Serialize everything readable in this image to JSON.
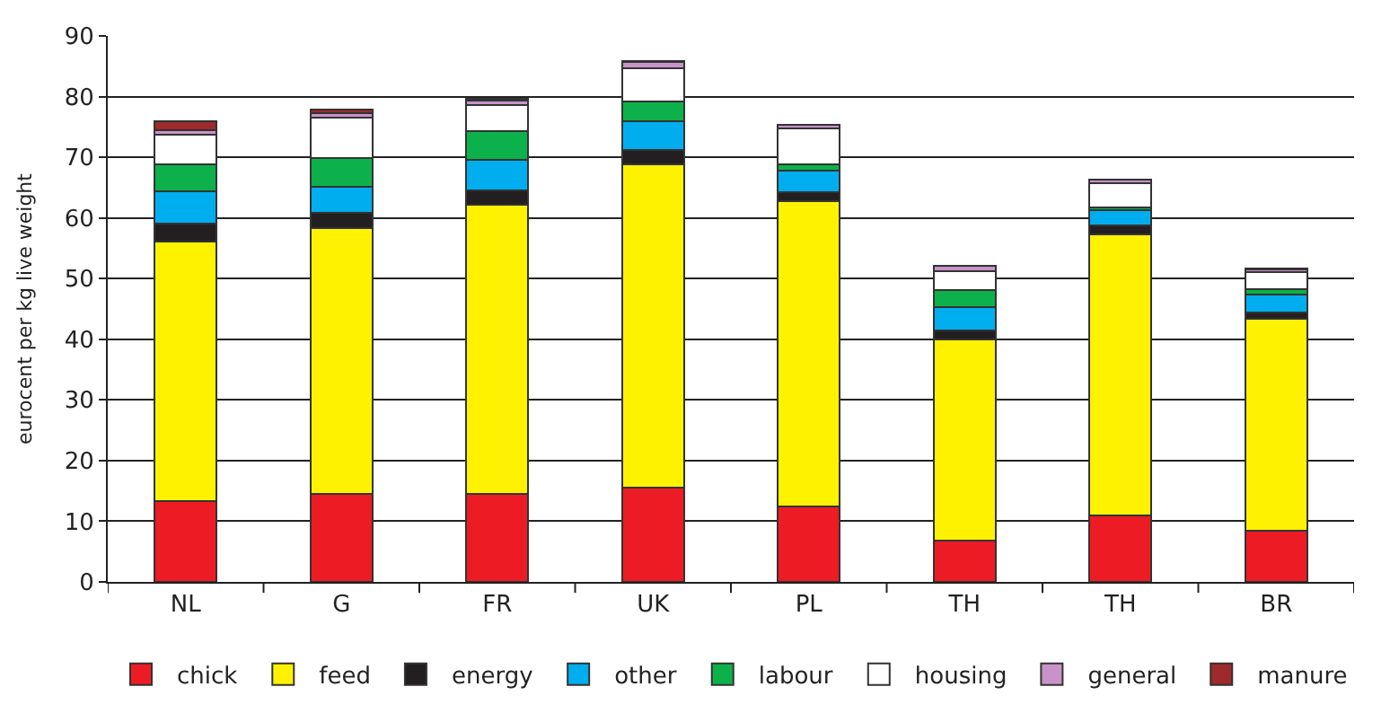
{
  "chart_data": {
    "type": "bar",
    "stacked": true,
    "ylabel": "eurocent per kg live weight",
    "categories": [
      "NL",
      "G",
      "FR",
      "UK",
      "PL",
      "TH",
      "TH",
      "BR"
    ],
    "series": [
      {
        "name": "chick",
        "color": "#ed1c24",
        "values": [
          13.3,
          14.5,
          14.5,
          15.5,
          12.4,
          6.8,
          10.9,
          8.4
        ]
      },
      {
        "name": "feed",
        "color": "#fff200",
        "values": [
          42.8,
          43.8,
          47.6,
          53.3,
          50.3,
          33.2,
          46.4,
          34.9
        ]
      },
      {
        "name": "energy",
        "color": "#231f20",
        "values": [
          3.0,
          2.6,
          2.5,
          2.4,
          1.5,
          1.4,
          1.5,
          1.1
        ]
      },
      {
        "name": "other",
        "color": "#00aeef",
        "values": [
          5.3,
          4.3,
          4.9,
          4.7,
          3.6,
          3.9,
          2.5,
          2.9
        ]
      },
      {
        "name": "labour",
        "color": "#0db14b",
        "values": [
          4.4,
          4.6,
          4.8,
          3.3,
          1.0,
          2.8,
          0.5,
          0.9
        ]
      },
      {
        "name": "housing",
        "color": "#ffffff",
        "values": [
          4.9,
          6.7,
          4.3,
          5.5,
          6.0,
          3.1,
          3.9,
          2.9
        ]
      },
      {
        "name": "general",
        "color": "#c893c8",
        "values": [
          0.8,
          0.7,
          0.8,
          1.0,
          0.6,
          0.9,
          0.6,
          0.4
        ]
      },
      {
        "name": "manure",
        "color": "#9e2a2b",
        "values": [
          1.5,
          0.7,
          0.2,
          0.2,
          null,
          null,
          null,
          0.2
        ]
      }
    ],
    "ylim": [
      0,
      90
    ],
    "yticks": [
      0,
      10,
      20,
      30,
      40,
      50,
      60,
      70,
      80,
      90
    ],
    "grid": "y",
    "legend": "bottom"
  }
}
